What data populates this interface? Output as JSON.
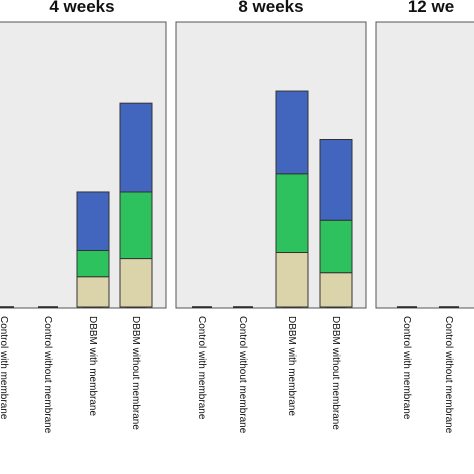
{
  "chart_data": {
    "type": "bar",
    "stacked": true,
    "panels": [
      {
        "title": "4 weeks",
        "categories": [
          "Control with membrane",
          "Control without membrane",
          "DBBM with membrane",
          "DBBM without membrane"
        ],
        "series": [
          {
            "color": "#dbd3a9",
            "values": [
              0,
              0,
              15,
              24
            ]
          },
          {
            "color": "#2ec25f",
            "values": [
              0,
              0,
              13,
              33
            ]
          },
          {
            "color": "#4266bd",
            "values": [
              0,
              0,
              29,
              44
            ]
          }
        ]
      },
      {
        "title": "8 weeks",
        "categories": [
          "Control with membrane",
          "Control without membrane",
          "DBBM with membrane",
          "DBBM without membrane"
        ],
        "series": [
          {
            "color": "#dbd3a9",
            "values": [
              0,
              0,
              27,
              17
            ]
          },
          {
            "color": "#2ec25f",
            "values": [
              0,
              0,
              39,
              26
            ]
          },
          {
            "color": "#4266bd",
            "values": [
              0,
              0,
              41,
              40
            ]
          }
        ]
      },
      {
        "title": "12 we",
        "categories": [
          "Control with membrane",
          "Control without membrane"
        ],
        "series": [
          {
            "color": "#dbd3a9",
            "values": [
              0,
              0
            ]
          },
          {
            "color": "#2ec25f",
            "values": [
              0,
              0
            ]
          },
          {
            "color": "#4266bd",
            "values": [
              0,
              0
            ]
          }
        ]
      }
    ],
    "ylim": [
      0,
      110
    ],
    "xlabel": "",
    "ylabel": "",
    "grid": false,
    "colors": {
      "panel_background": "#ececec",
      "panel_border": "#555555",
      "bar_stroke": "#333333"
    }
  }
}
